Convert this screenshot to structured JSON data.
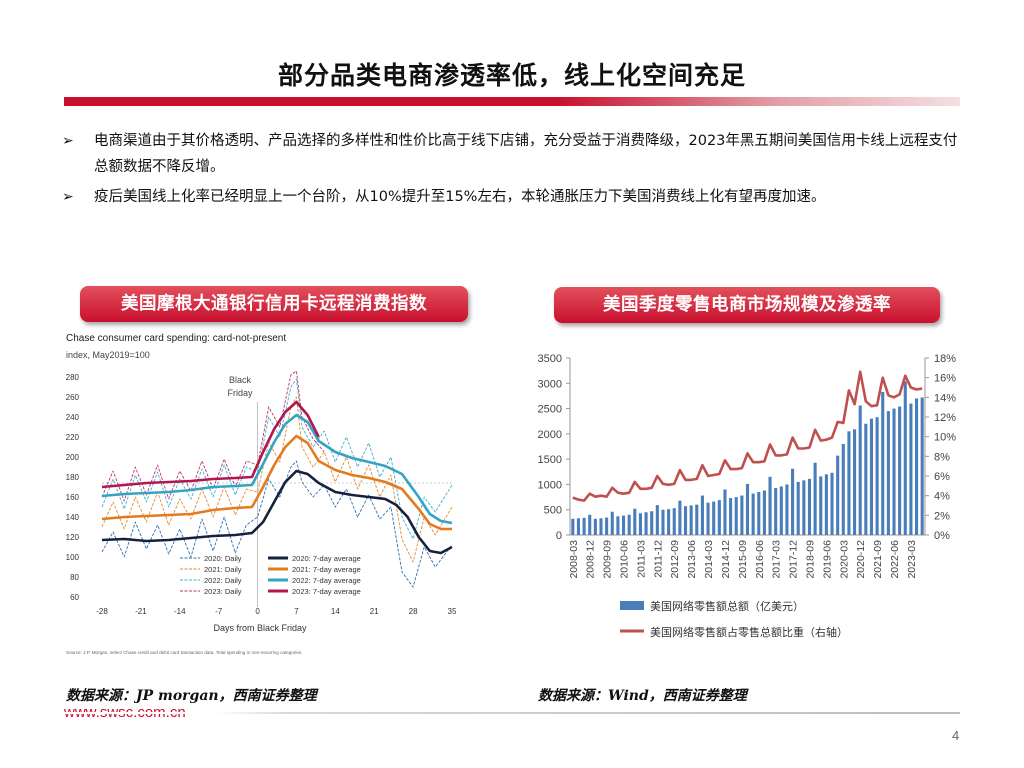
{
  "page": {
    "title": "部分品类电商渗透率低，线上化空间充足",
    "bullets": [
      {
        "text": "电商渠道由于其价格透明、产品选择的多样性和性价比高于线下店铺，充分受益于消费降级，2023年黑五期间美国信用卡线上远程支付总额数据不降反增。"
      },
      {
        "text": "疫后美国线上化率已经明显上一个台阶，从10%提升至15%左右，本轮通胀压力下美国消费线上化有望再度加速。"
      }
    ],
    "bullet_symbol": "➢",
    "left_panel_title": "美国摩根大通银行信用卡远程消费指数",
    "right_panel_title": "美国季度零售电商市场规模及渗透率",
    "left_source": "数据来源：JP morgan，西南证券整理",
    "right_source": "数据来源：Wind，西南证券整理",
    "website": "www.swsc.com.cn",
    "page_number": "4",
    "colors": {
      "accent": "#c8102e",
      "bar_blue": "#4a7ebb",
      "line_red": "#c0504d"
    }
  },
  "chart_data": [
    {
      "type": "line",
      "title": "Chase consumer card spending: card-not-present",
      "subtitle": "index, May2019=100",
      "xlabel": "Days from Black Friday",
      "annotation": [
        "Black",
        "Friday"
      ],
      "xlim": [
        -28,
        35
      ],
      "ylim": [
        50,
        290
      ],
      "x_ticks": [
        "-28",
        "-21",
        "-14",
        "-7",
        "0",
        "7",
        "14",
        "21",
        "28",
        "35"
      ],
      "y_ticks": [
        "60",
        "80",
        "100",
        "120",
        "140",
        "160",
        "180",
        "200",
        "220",
        "240",
        "260",
        "280"
      ],
      "footnote": "Source: J.P. Morgan, select Chase credit and debit card transaction data. Total spending in non-recurring categories.",
      "legend": [
        "2020: Daily",
        "2021: Daily",
        "2022: Daily",
        "2023: Daily",
        "2020: 7-day average",
        "2021: 7-day average",
        "2022: 7-day average",
        "2023: 7-day average"
      ],
      "series": [
        {
          "name": "2020: 7-day average",
          "color": "#17213f",
          "width": 2.6,
          "dash": false,
          "x": [
            -28,
            -24,
            -20,
            -16,
            -12,
            -8,
            -4,
            -1,
            1,
            3,
            5,
            7,
            9,
            11,
            14,
            17,
            20,
            23,
            25,
            27,
            29,
            31,
            33,
            35
          ],
          "y": [
            117,
            118,
            116,
            117,
            119,
            121,
            122,
            124,
            135,
            155,
            175,
            186,
            183,
            174,
            165,
            162,
            160,
            158,
            152,
            140,
            120,
            106,
            104,
            110
          ]
        },
        {
          "name": "2021: 7-day average",
          "color": "#e37a1e",
          "width": 2.6,
          "dash": false,
          "x": [
            -28,
            -24,
            -20,
            -16,
            -12,
            -8,
            -4,
            -1,
            1,
            3,
            5,
            7,
            9,
            11,
            14,
            17,
            20,
            23,
            26,
            29,
            31,
            33,
            35
          ],
          "y": [
            138,
            140,
            141,
            142,
            143,
            147,
            149,
            150,
            170,
            192,
            210,
            221,
            214,
            196,
            187,
            182,
            179,
            175,
            168,
            148,
            133,
            128,
            128
          ]
        },
        {
          "name": "2022: 7-day average",
          "color": "#35a4c4",
          "width": 2.6,
          "dash": false,
          "x": [
            -28,
            -24,
            -20,
            -16,
            -12,
            -8,
            -4,
            -1,
            1,
            3,
            5,
            7,
            9,
            11,
            14,
            17,
            20,
            23,
            26,
            29,
            31,
            33,
            35
          ],
          "y": [
            161,
            163,
            164,
            165,
            167,
            170,
            171,
            172,
            193,
            215,
            233,
            242,
            235,
            216,
            205,
            199,
            195,
            191,
            183,
            160,
            143,
            136,
            134
          ]
        },
        {
          "name": "2023: 7-day average",
          "color": "#b3174f",
          "width": 2.6,
          "dash": false,
          "x": [
            -28,
            -24,
            -20,
            -16,
            -12,
            -8,
            -4,
            -1,
            1,
            3,
            5,
            7,
            9,
            11
          ],
          "y": [
            170,
            172,
            174,
            175,
            176,
            178,
            179,
            180,
            205,
            228,
            245,
            255,
            242,
            220
          ]
        },
        {
          "name": "2020: Daily",
          "color": "#2f6fb0",
          "width": 0.9,
          "dash": true,
          "x": [
            -28,
            -26,
            -24,
            -22,
            -20,
            -18,
            -16,
            -14,
            -12,
            -10,
            -8,
            -6,
            -4,
            -2,
            0,
            2,
            4,
            6,
            7,
            8,
            10,
            12,
            14,
            16,
            18,
            20,
            22,
            24,
            26,
            28,
            30,
            32,
            35
          ],
          "y": [
            105,
            125,
            100,
            135,
            108,
            132,
            103,
            128,
            100,
            138,
            106,
            140,
            104,
            132,
            140,
            178,
            160,
            190,
            196,
            175,
            160,
            172,
            150,
            168,
            140,
            162,
            138,
            150,
            85,
            70,
            110,
            90,
            112
          ]
        },
        {
          "name": "2021: Daily",
          "color": "#e48a2e",
          "width": 0.9,
          "dash": true,
          "x": [
            -28,
            -26,
            -24,
            -22,
            -20,
            -18,
            -16,
            -14,
            -12,
            -10,
            -8,
            -6,
            -4,
            -2,
            0,
            2,
            4,
            6,
            7,
            8,
            10,
            12,
            14,
            16,
            18,
            20,
            22,
            24,
            26,
            28,
            30,
            32,
            35
          ],
          "y": [
            130,
            155,
            128,
            160,
            135,
            165,
            132,
            158,
            138,
            168,
            140,
            170,
            142,
            168,
            165,
            215,
            195,
            250,
            260,
            210,
            190,
            205,
            175,
            200,
            168,
            192,
            160,
            182,
            118,
            95,
            140,
            122,
            150
          ]
        },
        {
          "name": "2022: Daily",
          "color": "#3fb0cc",
          "width": 0.9,
          "dash": true,
          "x": [
            -28,
            -26,
            -24,
            -22,
            -20,
            -18,
            -16,
            -14,
            -12,
            -10,
            -8,
            -6,
            -4,
            -2,
            0,
            2,
            4,
            6,
            7,
            8,
            10,
            12,
            14,
            16,
            18,
            20,
            22,
            24,
            26,
            28,
            30,
            32,
            35
          ],
          "y": [
            150,
            178,
            148,
            182,
            155,
            185,
            150,
            178,
            158,
            188,
            160,
            192,
            162,
            190,
            185,
            240,
            220,
            270,
            278,
            230,
            210,
            226,
            195,
            220,
            190,
            214,
            180,
            200,
            140,
            118,
            160,
            145,
            172
          ]
        },
        {
          "name": "2023: Daily",
          "color": "#c0306a",
          "width": 0.9,
          "dash": true,
          "x": [
            -28,
            -26,
            -24,
            -22,
            -20,
            -18,
            -16,
            -14,
            -12,
            -10,
            -8,
            -6,
            -4,
            -2,
            0,
            2,
            4,
            6,
            7,
            8,
            10,
            12
          ],
          "y": [
            160,
            186,
            156,
            190,
            162,
            192,
            158,
            186,
            166,
            196,
            168,
            198,
            170,
            196,
            192,
            250,
            230,
            282,
            286,
            240,
            218,
            205
          ]
        }
      ]
    },
    {
      "type": "bar",
      "series_bar_name": "美国网络零售额总额（亿美元）",
      "series_line_name": "美国网络零售额占零售总额比重（右轴）",
      "ylim": [
        0,
        3500
      ],
      "y2lim": [
        0,
        18
      ],
      "y_ticks": [
        "0",
        "500",
        "1000",
        "1500",
        "2000",
        "2500",
        "3000",
        "3500"
      ],
      "y2_ticks": [
        "0%",
        "2%",
        "4%",
        "6%",
        "8%",
        "10%",
        "12%",
        "14%",
        "16%",
        "18%"
      ],
      "x_tick_labels": [
        "2008-03",
        "2008-12",
        "2009-09",
        "2010-06",
        "2011-03",
        "2011-12",
        "2012-09",
        "2013-06",
        "2014-03",
        "2014-12",
        "2015-09",
        "2016-06",
        "2017-03",
        "2017-12",
        "2018-09",
        "2019-06",
        "2020-03",
        "2020-12",
        "2021-09",
        "2022-06",
        "2023-03"
      ],
      "categories": [
        "2008-03",
        "2008-06",
        "2008-09",
        "2008-12",
        "2009-03",
        "2009-06",
        "2009-09",
        "2009-12",
        "2010-03",
        "2010-06",
        "2010-09",
        "2010-12",
        "2011-03",
        "2011-06",
        "2011-09",
        "2011-12",
        "2012-03",
        "2012-06",
        "2012-09",
        "2012-12",
        "2013-03",
        "2013-06",
        "2013-09",
        "2013-12",
        "2014-03",
        "2014-06",
        "2014-09",
        "2014-12",
        "2015-03",
        "2015-06",
        "2015-09",
        "2015-12",
        "2016-03",
        "2016-06",
        "2016-09",
        "2016-12",
        "2017-03",
        "2017-06",
        "2017-09",
        "2017-12",
        "2018-03",
        "2018-06",
        "2018-09",
        "2018-12",
        "2019-03",
        "2019-06",
        "2019-09",
        "2019-12",
        "2020-03",
        "2020-06",
        "2020-09",
        "2020-12",
        "2021-03",
        "2021-06",
        "2021-09",
        "2021-12",
        "2022-03",
        "2022-06",
        "2022-09",
        "2022-12",
        "2023-03",
        "2023-06",
        "2023-09"
      ],
      "bar_values": [
        320,
        330,
        340,
        400,
        320,
        330,
        345,
        460,
        370,
        385,
        400,
        520,
        430,
        450,
        470,
        590,
        500,
        510,
        530,
        680,
        570,
        585,
        600,
        780,
        640,
        660,
        690,
        900,
        730,
        750,
        780,
        1010,
        820,
        850,
        880,
        1150,
        930,
        960,
        1000,
        1310,
        1050,
        1080,
        1110,
        1430,
        1160,
        1200,
        1230,
        1570,
        1800,
        2050,
        2090,
        2560,
        2200,
        2300,
        2330,
        2830,
        2450,
        2500,
        2540,
        3040,
        2600,
        2700,
        2720
      ],
      "line_values": [
        3.8,
        3.6,
        3.5,
        4.2,
        3.9,
        4.0,
        3.9,
        4.8,
        4.3,
        4.2,
        4.3,
        5.4,
        4.7,
        4.7,
        4.8,
        6.0,
        5.2,
        5.1,
        5.2,
        6.6,
        5.6,
        5.6,
        5.7,
        7.1,
        6.0,
        6.1,
        6.2,
        7.6,
        6.7,
        6.7,
        6.8,
        8.3,
        7.4,
        7.4,
        7.5,
        9.2,
        8.1,
        8.1,
        8.2,
        9.9,
        8.8,
        8.8,
        8.9,
        10.7,
        9.6,
        9.7,
        9.9,
        11.5,
        11.4,
        14.7,
        13.3,
        16.6,
        13.6,
        13.1,
        13.2,
        16.0,
        14.2,
        14.0,
        14.3,
        16.2,
        15.0,
        14.8,
        14.9
      ]
    }
  ]
}
